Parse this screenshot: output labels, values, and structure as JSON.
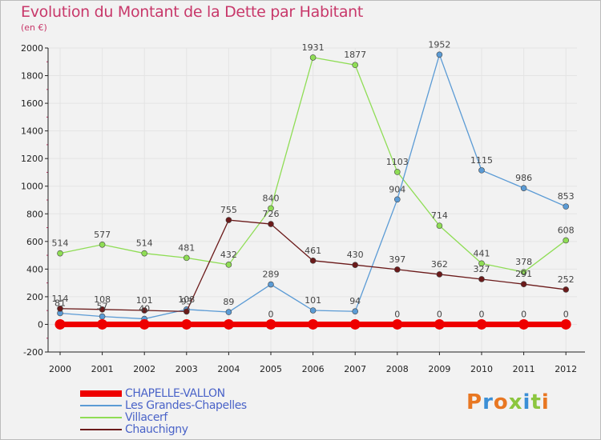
{
  "title": "Evolution du Montant de la Dette par Habitant",
  "subtitle": "(en €)",
  "colors": {
    "background": "#f2f2f2",
    "grid": "#e4e4e4",
    "axis": "#222222",
    "title": "#c8386a",
    "legend_text": "#4a63c8"
  },
  "legend": [
    {
      "name": "CHAPELLE-VALLON",
      "color": "#ee0000"
    },
    {
      "name": "Les Grandes-Chapelles",
      "color": "#5b9bd5"
    },
    {
      "name": "Villacerf",
      "color": "#8fdd55"
    },
    {
      "name": "Chauchigny",
      "color": "#6b1a1a"
    }
  ],
  "logo": "Proxiti",
  "chart_data": {
    "type": "line",
    "title": "Evolution du Montant de la Dette par Habitant",
    "subtitle": "(en €)",
    "x": [
      "2000",
      "2001",
      "2002",
      "2003",
      "2004",
      "2005",
      "2006",
      "2007",
      "2008",
      "2009",
      "2010",
      "2011",
      "2012"
    ],
    "ylim": [
      -200,
      2000
    ],
    "yticks": [
      "-200",
      "0",
      "200",
      "400",
      "600",
      "800",
      "1000",
      "1200",
      "1400",
      "1600",
      "1800",
      "2000"
    ],
    "grid": true,
    "legend_position": "bottom-left",
    "series": [
      {
        "name": "CHAPELLE-VALLON",
        "color": "#ee0000",
        "values": [
          0,
          0,
          0,
          0,
          0,
          0,
          0,
          0,
          0,
          0,
          0,
          0,
          0
        ],
        "labels": [
          "",
          "",
          "",
          "",
          "",
          "0",
          "",
          "",
          "0",
          "0",
          "0",
          "0",
          "0"
        ]
      },
      {
        "name": "Les Grandes-Chapelles",
        "color": "#5b9bd5",
        "values": [
          81,
          57,
          40,
          108,
          89,
          289,
          101,
          94,
          904,
          1952,
          1115,
          986,
          853
        ],
        "labels": [
          "81",
          "57",
          "40",
          "108",
          "89",
          "289",
          "101",
          "94",
          "904",
          "1952",
          "1115",
          "986",
          "853"
        ]
      },
      {
        "name": "Villacerf",
        "color": "#8fdd55",
        "values": [
          514,
          577,
          514,
          481,
          432,
          840,
          1931,
          1877,
          1103,
          714,
          441,
          378,
          608
        ],
        "labels": [
          "514",
          "577",
          "514",
          "481",
          "432",
          "840",
          "1931",
          "1877",
          "1103",
          "714",
          "441",
          "378",
          "608"
        ]
      },
      {
        "name": "Chauchigny",
        "color": "#6b1a1a",
        "values": [
          114,
          108,
          101,
          93,
          755,
          726,
          461,
          430,
          397,
          362,
          327,
          291,
          252
        ],
        "labels": [
          "114",
          "108",
          "101",
          "93",
          "755",
          "726",
          "461",
          "430",
          "397",
          "362",
          "327",
          "291",
          "252"
        ]
      }
    ]
  }
}
